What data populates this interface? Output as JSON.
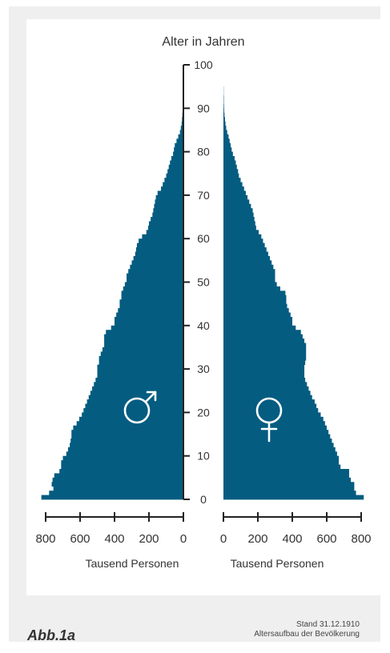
{
  "figure": {
    "label": "Abb.1a",
    "date_note": "Stand 31.12.1910",
    "caption": "Altersaufbau der Bevölkerung"
  },
  "chart_data": {
    "type": "bar",
    "orientation": "horizontal-pyramid",
    "title": "Alter in Jahren",
    "y_ticks": [
      0,
      10,
      20,
      30,
      40,
      50,
      60,
      70,
      80,
      90,
      100
    ],
    "ylim": [
      0,
      100
    ],
    "x_ticks": [
      0,
      200,
      400,
      600,
      800
    ],
    "xlim": [
      0,
      800
    ],
    "xlabel_left": "Tausend Personen",
    "xlabel_right": "Tausend Personen",
    "colors": {
      "bars": "#045c80",
      "axis": "#222222",
      "text": "#333333"
    },
    "symbols": {
      "left": "male-symbol",
      "right": "female-symbol"
    },
    "male": [
      825,
      780,
      755,
      765,
      760,
      750,
      720,
      710,
      710,
      700,
      680,
      670,
      660,
      655,
      650,
      650,
      640,
      620,
      605,
      590,
      580,
      570,
      560,
      550,
      540,
      530,
      520,
      510,
      500,
      500,
      500,
      490,
      490,
      480,
      470,
      460,
      460,
      460,
      450,
      420,
      400,
      400,
      390,
      380,
      370,
      370,
      360,
      360,
      350,
      340,
      330,
      330,
      320,
      310,
      300,
      290,
      280,
      275,
      270,
      260,
      240,
      215,
      205,
      200,
      190,
      180,
      175,
      170,
      165,
      160,
      150,
      130,
      120,
      110,
      100,
      92,
      85,
      78,
      70,
      60,
      55,
      50,
      40,
      30,
      20,
      15,
      10,
      8,
      6,
      4,
      3,
      2,
      2,
      1,
      1,
      0,
      0,
      0,
      0,
      0,
      0
    ],
    "female": [
      815,
      770,
      760,
      760,
      740,
      730,
      730,
      680,
      670,
      670,
      660,
      650,
      640,
      630,
      620,
      610,
      600,
      590,
      580,
      565,
      550,
      540,
      530,
      515,
      505,
      495,
      485,
      475,
      470,
      470,
      470,
      475,
      480,
      480,
      480,
      480,
      470,
      460,
      450,
      420,
      400,
      400,
      390,
      380,
      370,
      365,
      365,
      360,
      330,
      310,
      300,
      300,
      300,
      290,
      280,
      270,
      260,
      250,
      240,
      230,
      220,
      205,
      190,
      185,
      180,
      175,
      170,
      160,
      150,
      140,
      130,
      120,
      110,
      100,
      90,
      85,
      78,
      72,
      65,
      55,
      48,
      42,
      36,
      30,
      22,
      16,
      12,
      9,
      6,
      4,
      3,
      2,
      2,
      1,
      1,
      0,
      0,
      0,
      0,
      0,
      0
    ]
  }
}
